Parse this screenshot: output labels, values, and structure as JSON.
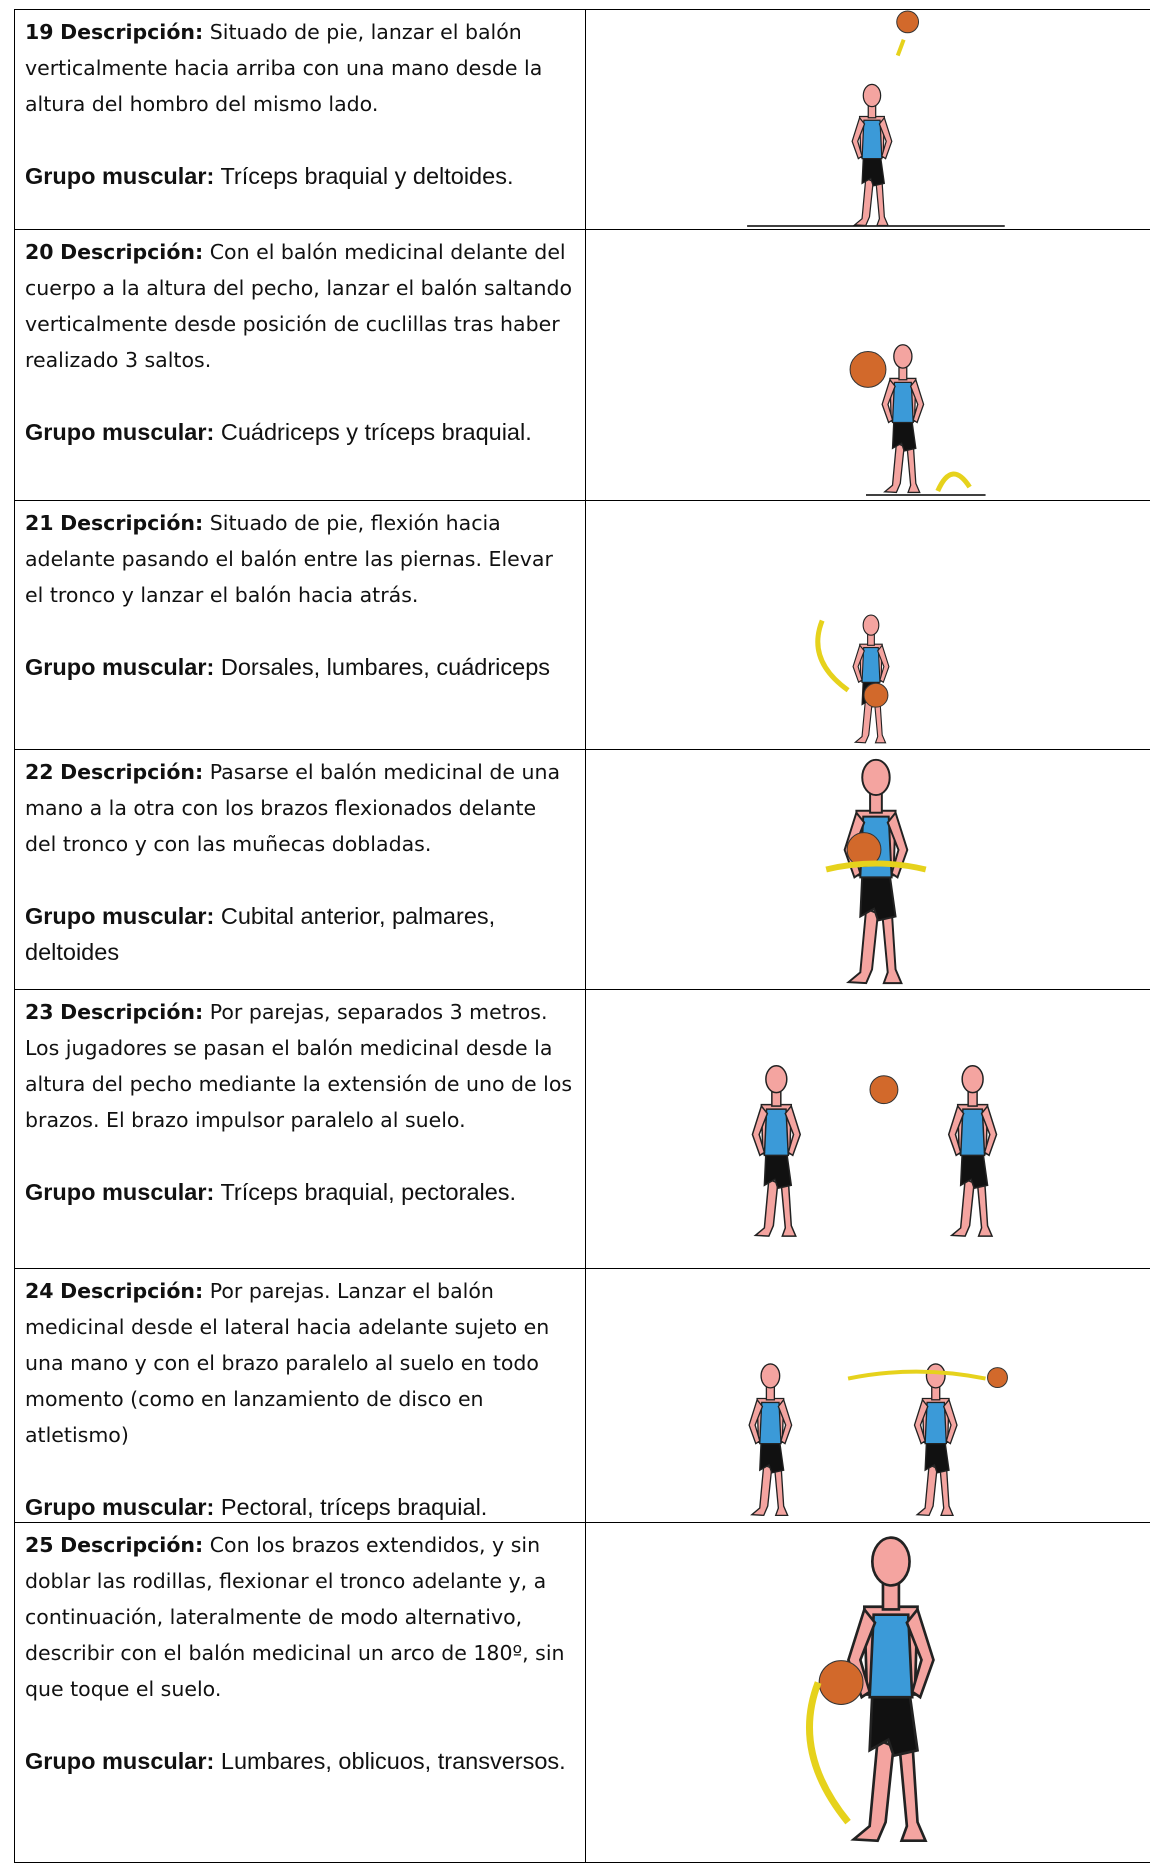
{
  "rows": [
    {
      "number": "19",
      "description_label": "Descripción:",
      "description": "Situado de pie, lanzar el balón verticalmente hacia arriba con una mano desde la altura del hombro del mismo lado.",
      "muscle_label": "Grupo muscular:",
      "muscle": "Tríceps braquial y deltoides."
    },
    {
      "number": "20",
      "description_label": "Descripción:",
      "description": "Con el balón medicinal delante del cuerpo a la altura del pecho, lanzar el balón saltando verticalmente desde posición de cuclillas tras haber realizado 3 saltos.",
      "muscle_label": "Grupo muscular:",
      "muscle": "Cuádriceps y tríceps braquial."
    },
    {
      "number": "21",
      "description_label": "Descripción:",
      "description": "Situado de pie, flexión hacia adelante pasando el balón entre las piernas. Elevar el tronco y lanzar el balón hacia atrás.",
      "muscle_label": "Grupo muscular:",
      "muscle": "Dorsales, lumbares, cuádriceps"
    },
    {
      "number": "22",
      "description_label": "Descripción:",
      "description": "Pasarse el balón medicinal de una mano a la otra con los brazos flexionados delante del tronco y con las muñecas dobladas.",
      "muscle_label": "Grupo muscular:",
      "muscle": "Cubital anterior, palmares, deltoides"
    },
    {
      "number": "23",
      "description_label": "Descripción:",
      "description": "Por parejas, separados 3 metros. Los jugadores se pasan el balón medicinal desde la altura del pecho mediante la extensión de uno de los brazos. El brazo impulsor paralelo al suelo.",
      "muscle_label": "Grupo muscular:",
      "muscle": "Tríceps braquial, pectorales."
    },
    {
      "number": "24",
      "description_label": "Descripción:",
      "description": "Por parejas. Lanzar el balón medicinal desde el lateral hacia adelante sujeto en una mano y con el brazo paralelo al suelo en todo momento (como en lanzamiento de disco en atletismo)",
      "muscle_label": "Grupo muscular:",
      "muscle": "Pectoral, tríceps braquial."
    },
    {
      "number": "25",
      "description_label": "Descripción:",
      "description": "Con los brazos extendidos, y sin doblar las rodillas, flexionar el tronco adelante y, a continuación, lateralmente de modo alternativo, describir con el balón medicinal un arco de 180º, sin que toque el suelo.",
      "muscle_label": "Grupo muscular:",
      "muscle": "Lumbares, oblicuos, transversos."
    }
  ]
}
